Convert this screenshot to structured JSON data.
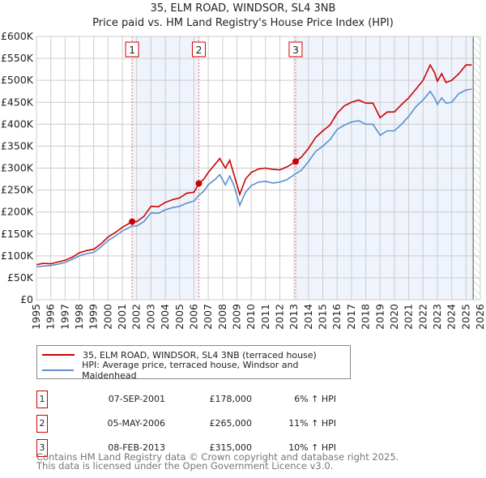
{
  "title": "35, ELM ROAD, WINDSOR, SL4 3NB",
  "subtitle": "Price paid vs. HM Land Registry's House Price Index (HPI)",
  "colors": {
    "property": "#cc0000",
    "hpi": "#5b8fd0",
    "band": "#eef3fc",
    "grid": "#cccccc"
  },
  "chart_data": {
    "type": "line",
    "xlim": [
      1995,
      2026
    ],
    "ylim": [
      0,
      600000
    ],
    "yticks": [
      0,
      50000,
      100000,
      150000,
      200000,
      250000,
      300000,
      350000,
      400000,
      450000,
      500000,
      550000,
      600000
    ],
    "ytick_labels": [
      "£0",
      "£50K",
      "£100K",
      "£150K",
      "£200K",
      "£250K",
      "£300K",
      "£350K",
      "£400K",
      "£450K",
      "£500K",
      "£550K",
      "£600K"
    ],
    "xticks": [
      "1995",
      "1996",
      "1997",
      "1998",
      "1999",
      "2000",
      "2001",
      "2002",
      "2003",
      "2004",
      "2005",
      "2006",
      "2007",
      "2008",
      "2009",
      "2010",
      "2011",
      "2012",
      "2013",
      "2014",
      "2015",
      "2016",
      "2017",
      "2018",
      "2019",
      "2020",
      "2021",
      "2022",
      "2023",
      "2024",
      "2025",
      "2026"
    ],
    "grid": true,
    "forecast_hatch_from": 2025.5,
    "series": [
      {
        "name": "35, ELM ROAD, WINDSOR, SL4 3NB (terraced house)",
        "color": "#cc0000",
        "x": [
          1995,
          1995.5,
          1996,
          1996.5,
          1997,
          1997.5,
          1998,
          1998.5,
          1999,
          1999.5,
          2000,
          2000.5,
          2001,
          2001.68,
          2002,
          2002.5,
          2003,
          2003.5,
          2004,
          2004.5,
          2005,
          2005.5,
          2006,
          2006.34,
          2006.7,
          2007,
          2007.5,
          2007.8,
          2008.2,
          2008.5,
          2008.8,
          2009.2,
          2009.6,
          2010,
          2010.5,
          2011,
          2011.5,
          2012,
          2012.5,
          2013.1,
          2013.5,
          2014,
          2014.5,
          2015,
          2015.5,
          2016,
          2016.5,
          2017,
          2017.5,
          2018,
          2018.5,
          2019,
          2019.5,
          2020,
          2020.5,
          2021,
          2021.5,
          2022,
          2022.5,
          2022.8,
          2023,
          2023.3,
          2023.6,
          2024,
          2024.5,
          2025,
          2025.4
        ],
        "y": [
          80000,
          83000,
          82000,
          86000,
          90000,
          97000,
          107000,
          112000,
          115000,
          127000,
          143000,
          153000,
          165000,
          178000,
          178000,
          190000,
          213000,
          212000,
          222000,
          228000,
          232000,
          243000,
          245000,
          265000,
          275000,
          290000,
          310000,
          322000,
          300000,
          318000,
          285000,
          240000,
          275000,
          290000,
          298000,
          300000,
          297000,
          296000,
          303000,
          315000,
          325000,
          345000,
          370000,
          385000,
          398000,
          425000,
          442000,
          450000,
          455000,
          448000,
          448000,
          415000,
          428000,
          428000,
          445000,
          460000,
          480000,
          500000,
          535000,
          518000,
          498000,
          515000,
          495000,
          500000,
          515000,
          535000,
          535000
        ]
      },
      {
        "name": "HPI: Average price, terraced house, Windsor and Maidenhead",
        "color": "#5b8fd0",
        "x": [
          1995,
          1995.5,
          1996,
          1996.5,
          1997,
          1997.5,
          1998,
          1998.5,
          1999,
          1999.5,
          2000,
          2000.5,
          2001,
          2001.68,
          2002,
          2002.5,
          2003,
          2003.5,
          2004,
          2004.5,
          2005,
          2005.5,
          2006,
          2006.34,
          2006.7,
          2007,
          2007.5,
          2007.8,
          2008.2,
          2008.5,
          2008.8,
          2009.2,
          2009.6,
          2010,
          2010.5,
          2011,
          2011.5,
          2012,
          2012.5,
          2013.1,
          2013.5,
          2014,
          2014.5,
          2015,
          2015.5,
          2016,
          2016.5,
          2017,
          2017.5,
          2018,
          2018.5,
          2019,
          2019.5,
          2020,
          2020.5,
          2021,
          2021.5,
          2022,
          2022.5,
          2022.8,
          2023,
          2023.3,
          2023.6,
          2024,
          2024.5,
          2025,
          2025.4
        ],
        "y": [
          75000,
          77000,
          78000,
          81000,
          85000,
          92000,
          100000,
          105000,
          108000,
          120000,
          135000,
          145000,
          157000,
          168000,
          168000,
          178000,
          198000,
          197000,
          205000,
          210000,
          213000,
          220000,
          225000,
          238000,
          248000,
          262000,
          275000,
          285000,
          262000,
          282000,
          260000,
          215000,
          245000,
          260000,
          268000,
          270000,
          266000,
          268000,
          274000,
          287000,
          295000,
          315000,
          338000,
          350000,
          365000,
          388000,
          398000,
          405000,
          408000,
          400000,
          400000,
          375000,
          385000,
          385000,
          400000,
          418000,
          440000,
          455000,
          475000,
          460000,
          445000,
          460000,
          448000,
          450000,
          470000,
          478000,
          480000
        ]
      }
    ],
    "sales": [
      {
        "x": 2001.68,
        "y": 178000,
        "label": "1"
      },
      {
        "x": 2006.34,
        "y": 265000,
        "label": "2"
      },
      {
        "x": 2013.1,
        "y": 315000,
        "label": "3"
      }
    ]
  },
  "legend": {
    "property": "35, ELM ROAD, WINDSOR, SL4 3NB (terraced house)",
    "hpi": "HPI: Average price, terraced house, Windsor and Maidenhead"
  },
  "sales_table": [
    {
      "num": "1",
      "date": "07-SEP-2001",
      "price": "£178,000",
      "hpi": "6% ↑ HPI"
    },
    {
      "num": "2",
      "date": "05-MAY-2006",
      "price": "£265,000",
      "hpi": "11% ↑ HPI"
    },
    {
      "num": "3",
      "date": "08-FEB-2013",
      "price": "£315,000",
      "hpi": "10% ↑ HPI"
    }
  ],
  "footer": {
    "line1": "Contains HM Land Registry data © Crown copyright and database right 2025.",
    "line2": "This data is licensed under the Open Government Licence v3.0."
  }
}
